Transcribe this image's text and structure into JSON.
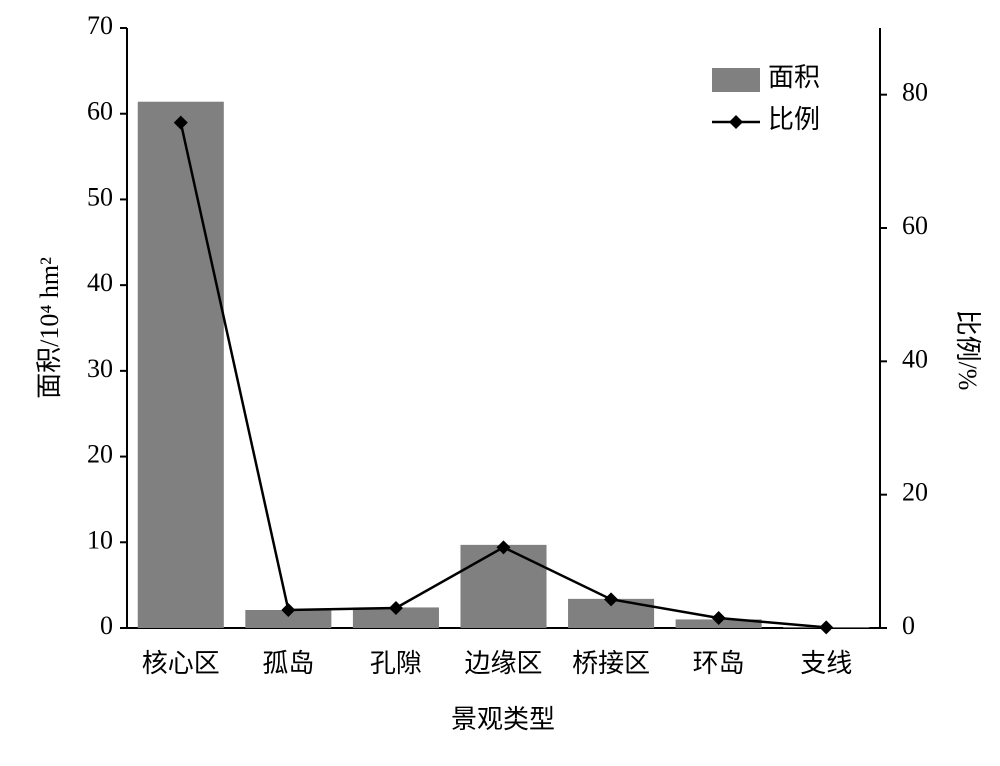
{
  "chart_data": {
    "type": "bar_line",
    "x_label": "景观类型",
    "y_label": "面积/10⁴ hm²",
    "y2_label": "比例/%",
    "categories": [
      "核心区",
      "孤岛",
      "孔隙",
      "边缘区",
      "桥接区",
      "环岛",
      "支线"
    ],
    "series": [
      {
        "name": "面积",
        "type": "bar",
        "color": "#808080",
        "values": [
          61.4,
          2.1,
          2.4,
          9.7,
          3.4,
          1.0,
          0.1
        ]
      },
      {
        "name": "比例",
        "type": "line",
        "axis": "y2",
        "color": "#000000",
        "values": [
          75.8,
          2.7,
          3.0,
          12.1,
          4.3,
          1.5,
          0.1
        ]
      }
    ],
    "ylim": [
      0,
      70
    ],
    "yticks": [
      0,
      10,
      20,
      30,
      40,
      50,
      60,
      70
    ],
    "y2lim": [
      0,
      90
    ],
    "y2ticks": [
      0,
      20,
      40,
      60,
      80
    ],
    "legend": "upper-right"
  }
}
